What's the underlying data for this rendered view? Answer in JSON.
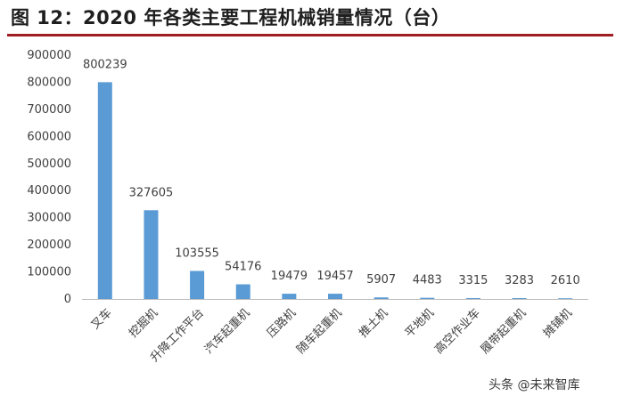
{
  "figure": {
    "title": "图 12：2020 年各类主要工程机械销量情况（台）"
  },
  "watermark": "头条 @未来智库",
  "colors": {
    "bar": "#5b9bd5",
    "axis": "#bfbfbf",
    "rule": "#a01e23"
  },
  "chart_data": {
    "type": "bar",
    "categories": [
      "叉车",
      "挖掘机",
      "升降工作平台",
      "汽车起重机",
      "压路机",
      "随车起重机",
      "推土机",
      "平地机",
      "高空作业车",
      "履带起重机",
      "摊铺机"
    ],
    "values": [
      800239,
      327605,
      103555,
      54176,
      19479,
      19457,
      5907,
      4483,
      3315,
      3283,
      2610
    ],
    "data_labels": [
      "800239",
      "327605",
      "103555",
      "54176",
      "19479",
      "19457",
      "5907",
      "4483",
      "3315",
      "3283",
      "2610"
    ],
    "yticks": [
      "0",
      "100000",
      "200000",
      "300000",
      "400000",
      "500000",
      "600000",
      "700000",
      "800000",
      "900000"
    ],
    "ylim": [
      0,
      900000
    ],
    "title": "",
    "xlabel": "",
    "ylabel": "",
    "grid": false,
    "legend": "none"
  }
}
